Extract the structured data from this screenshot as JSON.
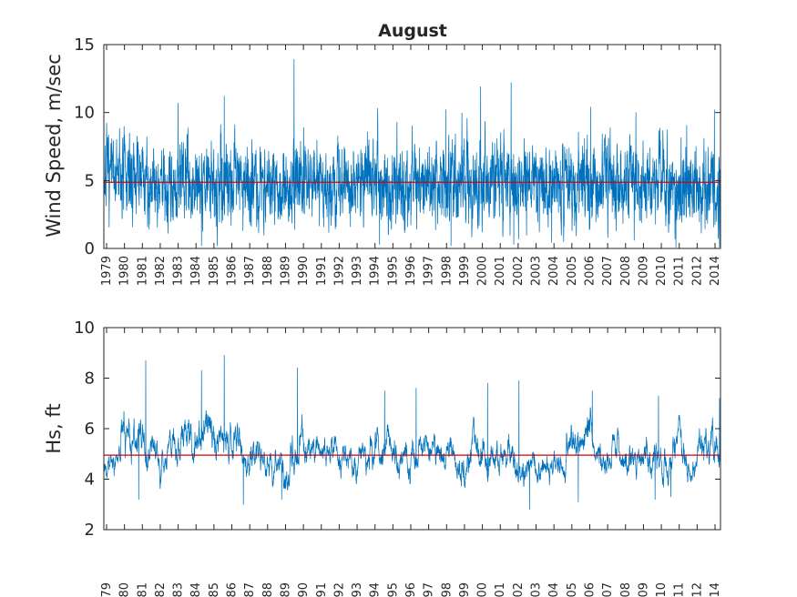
{
  "chart_data": [
    {
      "type": "line",
      "title": "August",
      "xlabel": "",
      "ylabel": "Wind Speed, m/sec",
      "ylim": [
        0,
        15
      ],
      "yticks": [
        0,
        5,
        10,
        15
      ],
      "xlim": [
        1979,
        2014.35
      ],
      "xticks": [
        "1979",
        "1980",
        "1981",
        "1982",
        "1983",
        "1984",
        "1985",
        "1986",
        "1987",
        "1988",
        "1989",
        "1990",
        "1991",
        "1992",
        "1993",
        "1994",
        "1995",
        "1996",
        "1997",
        "1998",
        "1999",
        "2000",
        "2001",
        "2002",
        "2003",
        "2004",
        "2005",
        "2006",
        "2007",
        "2008",
        "2009",
        "2010",
        "2011",
        "2012",
        "2014"
      ],
      "grid": false,
      "legend": "none",
      "series": [
        {
          "role": "hourly",
          "color": "#0072BD",
          "sampling": {
            "per_year": 110,
            "low": 0.2,
            "high": 14
          },
          "yearly_level": [
            5.3,
            5.2,
            5.0,
            4.9,
            5.1,
            5.0,
            4.8,
            5.2,
            4.9,
            4.8,
            4.6,
            5.0,
            4.8,
            4.8,
            4.7,
            4.9,
            4.6,
            4.7,
            4.8,
            4.9,
            4.7,
            4.9,
            4.8,
            4.9,
            4.9,
            5.0,
            4.9,
            4.8,
            4.9,
            4.9,
            4.8,
            4.7,
            4.8,
            4.9,
            4.8,
            4.9
          ],
          "yearly_spread": [
            1.4,
            1.5,
            1.5,
            1.4,
            1.5,
            1.5,
            1.6,
            1.5,
            1.4,
            1.4,
            1.4,
            1.6,
            1.4,
            1.4,
            1.4,
            1.5,
            1.5,
            1.6,
            1.5,
            1.5,
            1.6,
            1.6,
            1.5,
            1.6,
            1.5,
            1.5,
            1.5,
            1.5,
            1.5,
            1.5,
            1.5,
            1.5,
            1.5,
            1.5,
            1.6,
            1.6
          ],
          "peaks": [
            [
              1983.25,
              10.7
            ],
            [
              1985.9,
              11.2
            ],
            [
              1989.9,
              13.9
            ],
            [
              1994.7,
              10.3
            ],
            [
              1995.8,
              9.3
            ],
            [
              1998.6,
              10.2
            ],
            [
              2000.6,
              11.9
            ],
            [
              2002.35,
              12.2
            ],
            [
              2006.9,
              10.4
            ],
            [
              2009.5,
              10.0
            ],
            [
              2014.0,
              10.2
            ]
          ],
          "lows": [
            [
              1984.6,
              0.2
            ],
            [
              1994.8,
              0.3
            ],
            [
              1998.9,
              0.2
            ],
            [
              2002.5,
              0.3
            ],
            [
              2009.4,
              0.6
            ],
            [
              2011.8,
              0.1
            ],
            [
              2014.3,
              0.1
            ]
          ]
        },
        {
          "role": "mean",
          "color": "#D90000",
          "values": [
            4.87,
            4.87
          ]
        }
      ]
    },
    {
      "type": "line",
      "title": "",
      "xlabel": "",
      "ylabel": "Hs, ft",
      "ylim": [
        2,
        10
      ],
      "yticks": [
        2,
        4,
        6,
        8,
        10
      ],
      "xlim": [
        1979,
        2014.35
      ],
      "xticks": [
        "1979",
        "1980",
        "1981",
        "1982",
        "1983",
        "1984",
        "1985",
        "1986",
        "1987",
        "1988",
        "1989",
        "1990",
        "1991",
        "1992",
        "1993",
        "1994",
        "1995",
        "1996",
        "1997",
        "1998",
        "1999",
        "2000",
        "2001",
        "2002",
        "2003",
        "2004",
        "2005",
        "2006",
        "2007",
        "2008",
        "2009",
        "2010",
        "2011",
        "2012",
        "2014"
      ],
      "grid": false,
      "legend": "none",
      "series": [
        {
          "role": "hourly",
          "color": "#0072BD",
          "sampling": {
            "per_year": 110,
            "low": 2.7,
            "high": 8.9
          },
          "yearly_level": [
            4.6,
            5.6,
            5.3,
            5.1,
            5.4,
            5.7,
            5.6,
            5.3,
            4.9,
            4.4,
            4.8,
            5.6,
            4.9,
            5.1,
            4.8,
            5.0,
            5.0,
            4.8,
            4.9,
            5.0,
            5.1,
            4.9,
            5.2,
            4.9,
            4.3,
            4.8,
            4.6,
            5.4,
            5.3,
            4.8,
            4.8,
            4.8,
            5.1,
            5.2,
            5.1,
            5.3
          ],
          "yearly_spread": [
            0.35,
            0.55,
            0.55,
            0.45,
            0.55,
            0.6,
            0.55,
            0.5,
            0.45,
            0.4,
            0.5,
            0.55,
            0.4,
            0.45,
            0.4,
            0.45,
            0.45,
            0.45,
            0.45,
            0.45,
            0.45,
            0.45,
            0.5,
            0.45,
            0.4,
            0.45,
            0.4,
            0.5,
            0.5,
            0.45,
            0.45,
            0.45,
            0.45,
            0.45,
            0.45,
            0.5
          ],
          "peaks": [
            [
              1981.4,
              8.7
            ],
            [
              1984.6,
              8.3
            ],
            [
              1985.9,
              8.9
            ],
            [
              1990.1,
              8.4
            ],
            [
              1995.1,
              7.5
            ],
            [
              1996.9,
              7.6
            ],
            [
              2001.0,
              7.8
            ],
            [
              2002.8,
              7.9
            ],
            [
              2007.0,
              7.5
            ],
            [
              2010.8,
              7.3
            ],
            [
              2014.3,
              7.2
            ]
          ],
          "lows": [
            [
              1981.0,
              3.2
            ],
            [
              1987.0,
              3.0
            ],
            [
              1989.2,
              3.2
            ],
            [
              2003.4,
              2.8
            ],
            [
              2006.2,
              3.1
            ],
            [
              2010.6,
              3.2
            ],
            [
              2011.5,
              3.3
            ]
          ]
        },
        {
          "role": "mean",
          "color": "#D90000",
          "values": [
            4.95,
            4.95
          ]
        }
      ]
    }
  ]
}
